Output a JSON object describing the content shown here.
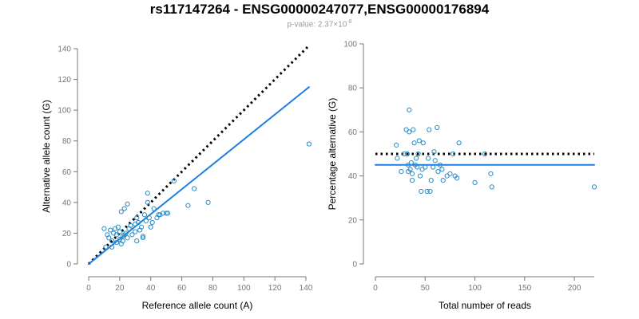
{
  "title": "rs117147264 - ENSG00000247077,ENSG00000176894",
  "subtitle": {
    "prefix": "p-value: 2.37×10",
    "exponent": "-8"
  },
  "colors": {
    "points": "#2b8cc4",
    "fit_line": "#1f7fe0",
    "reference_line": "#000000",
    "axis": "#777777"
  },
  "chart_data": [
    {
      "type": "scatter",
      "xlabel": "Reference allele count (A)",
      "ylabel": "Alternative allele count (G)",
      "xlim": [
        0,
        140
      ],
      "ylim": [
        0,
        140
      ],
      "xticks": [
        "0",
        "20",
        "40",
        "60",
        "80",
        "100",
        "120",
        "140"
      ],
      "yticks": [
        "0",
        "20",
        "40",
        "60",
        "80",
        "100",
        "120",
        "140"
      ],
      "grid": false,
      "lines": [
        {
          "style": "dotted",
          "x": [
            0,
            142
          ],
          "y": [
            0,
            142
          ]
        },
        {
          "style": "solid",
          "x": [
            0,
            142
          ],
          "y": [
            0,
            115
          ]
        }
      ],
      "points": [
        [
          10,
          23
        ],
        [
          11,
          11
        ],
        [
          12,
          19
        ],
        [
          13,
          17
        ],
        [
          14,
          22
        ],
        [
          15,
          15
        ],
        [
          15,
          11
        ],
        [
          16,
          20
        ],
        [
          17,
          23
        ],
        [
          18,
          14
        ],
        [
          18,
          19
        ],
        [
          19,
          24
        ],
        [
          20,
          16
        ],
        [
          20,
          21
        ],
        [
          21,
          13
        ],
        [
          21,
          34
        ],
        [
          22,
          18
        ],
        [
          22,
          15
        ],
        [
          23,
          19
        ],
        [
          23,
          36
        ],
        [
          24,
          20
        ],
        [
          25,
          39
        ],
        [
          25,
          17
        ],
        [
          26,
          23
        ],
        [
          27,
          25
        ],
        [
          28,
          19
        ],
        [
          30,
          21
        ],
        [
          30,
          26
        ],
        [
          31,
          30
        ],
        [
          31,
          15
        ],
        [
          32,
          27
        ],
        [
          33,
          22
        ],
        [
          34,
          24
        ],
        [
          35,
          17
        ],
        [
          35,
          18
        ],
        [
          36,
          32
        ],
        [
          37,
          28
        ],
        [
          38,
          46
        ],
        [
          38,
          40
        ],
        [
          39,
          30
        ],
        [
          40,
          24
        ],
        [
          41,
          27
        ],
        [
          42,
          36
        ],
        [
          44,
          30
        ],
        [
          45,
          32
        ],
        [
          46,
          32
        ],
        [
          48,
          33
        ],
        [
          50,
          33
        ],
        [
          51,
          33
        ],
        [
          55,
          54
        ],
        [
          64,
          38
        ],
        [
          68,
          49
        ],
        [
          77,
          40
        ],
        [
          142,
          78
        ]
      ]
    },
    {
      "type": "scatter",
      "xlabel": "Total number of reads",
      "ylabel": "Percentage alternative (G)",
      "xlim": [
        0,
        220
      ],
      "ylim": [
        0,
        100
      ],
      "xticks": [
        "0",
        "50",
        "100",
        "150",
        "200"
      ],
      "yticks": [
        "0",
        "20",
        "40",
        "60",
        "80",
        "100"
      ],
      "grid": false,
      "lines": [
        {
          "style": "dotted",
          "x": [
            0,
            220
          ],
          "y": [
            50,
            50
          ]
        },
        {
          "style": "solid",
          "x": [
            0,
            220
          ],
          "y": [
            45,
            45
          ]
        }
      ],
      "points": [
        [
          21,
          54
        ],
        [
          22,
          48
        ],
        [
          26,
          42
        ],
        [
          29,
          50
        ],
        [
          31,
          61
        ],
        [
          32,
          50
        ],
        [
          33,
          45
        ],
        [
          33,
          42
        ],
        [
          34,
          70
        ],
        [
          34,
          60
        ],
        [
          35,
          43
        ],
        [
          36,
          46
        ],
        [
          37,
          41
        ],
        [
          37,
          38
        ],
        [
          38,
          61
        ],
        [
          39,
          55
        ],
        [
          40,
          45
        ],
        [
          41,
          48
        ],
        [
          42,
          44
        ],
        [
          43,
          50
        ],
        [
          44,
          56
        ],
        [
          45,
          40
        ],
        [
          46,
          33
        ],
        [
          47,
          43
        ],
        [
          48,
          55
        ],
        [
          50,
          44
        ],
        [
          52,
          33
        ],
        [
          53,
          48
        ],
        [
          54,
          61
        ],
        [
          55,
          33
        ],
        [
          56,
          38
        ],
        [
          58,
          44
        ],
        [
          59,
          51
        ],
        [
          60,
          47
        ],
        [
          62,
          62
        ],
        [
          63,
          42
        ],
        [
          65,
          45
        ],
        [
          67,
          43
        ],
        [
          68,
          38
        ],
        [
          72,
          40
        ],
        [
          75,
          41
        ],
        [
          78,
          50
        ],
        [
          80,
          40
        ],
        [
          82,
          39
        ],
        [
          84,
          55
        ],
        [
          100,
          37
        ],
        [
          110,
          50
        ],
        [
          116,
          41
        ],
        [
          117,
          35
        ],
        [
          220,
          35
        ]
      ]
    }
  ]
}
